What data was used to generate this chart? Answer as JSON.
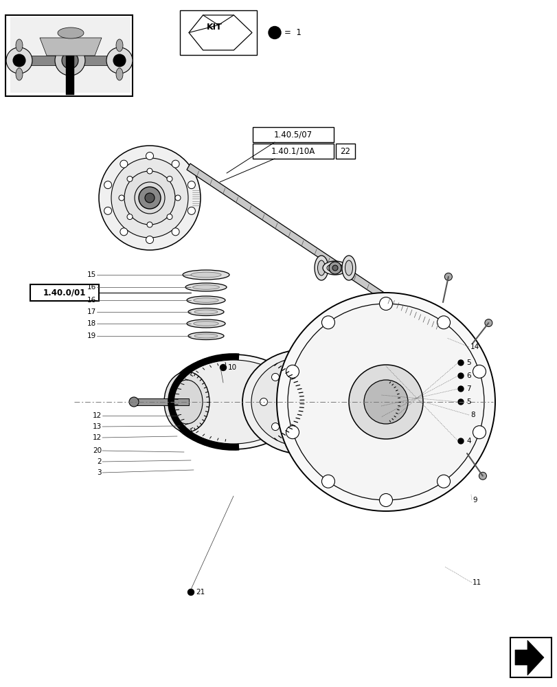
{
  "bg_color": "#ffffff",
  "fig_width": 8.12,
  "fig_height": 10.0,
  "dpi": 100,
  "labels": {
    "ref1": "1.40.5/07",
    "ref2": "1.40.1/10A",
    "ref2b": "22",
    "ref3": "1.40.0/01",
    "kit": "KIT",
    "kit_eq": "=  1"
  },
  "bullet_parts": [
    "5",
    "6",
    "7",
    "4",
    "10",
    "21"
  ]
}
